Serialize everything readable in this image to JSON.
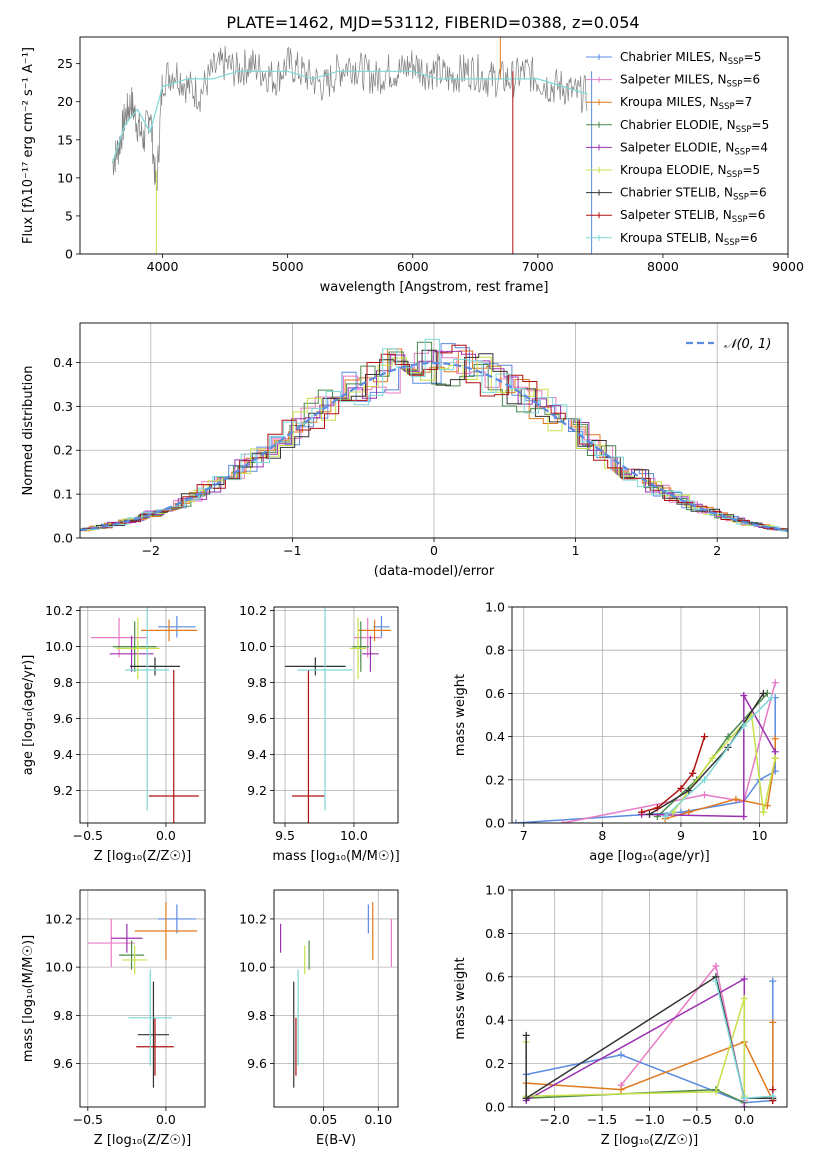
{
  "figure": {
    "title": "PLATE=1462, MJD=53112, FIBERID=0388, z=0.054"
  },
  "models": [
    {
      "name": "Chabrier MILES",
      "nssp": "5",
      "color": "#5b8be0"
    },
    {
      "name": "Salpeter MILES",
      "nssp": "6",
      "color": "#e87bc6"
    },
    {
      "name": "Kroupa MILES",
      "nssp": "7",
      "color": "#e07a1f"
    },
    {
      "name": "Chabrier ELODIE",
      "nssp": "5",
      "color": "#4b8a4b"
    },
    {
      "name": "Salpeter ELODIE",
      "nssp": "4",
      "color": "#9b30b0"
    },
    {
      "name": "Kroupa ELODIE",
      "nssp": "5",
      "color": "#c8e04a"
    },
    {
      "name": "Chabrier STELIB",
      "nssp": "6",
      "color": "#333333"
    },
    {
      "name": "Salpeter STELIB",
      "nssp": "6",
      "color": "#b01010"
    },
    {
      "name": "Kroupa STELIB",
      "nssp": "6",
      "color": "#7fd8d8"
    }
  ],
  "chart_data": [
    {
      "id": "spectrum",
      "type": "line",
      "xlabel": "wavelength [Angstrom, rest frame]",
      "ylabel": "Flux [fλ10⁻¹⁷ erg cm⁻² s⁻¹ A⁻¹]",
      "xlim": [
        3340,
        9000
      ],
      "ylim": [
        0,
        28.5
      ],
      "xticks": [
        4000,
        5000,
        6000,
        7000,
        8000,
        9000
      ],
      "yticks": [
        0,
        5,
        10,
        15,
        20,
        25
      ],
      "legend_position": "top-right",
      "series": [
        {
          "name": "data",
          "color": "#808080",
          "x": [
            3600,
            3650,
            3700,
            3750,
            3800,
            3850,
            3900,
            3950,
            4000,
            4100,
            4200,
            4300,
            4400,
            4500,
            4600,
            4700,
            4800,
            4900,
            5000,
            5100,
            5200,
            5300,
            5400,
            5500,
            5600,
            5700,
            5800,
            5900,
            6000,
            6100,
            6200,
            6300,
            6400,
            6500,
            6600,
            6700,
            6800,
            6900,
            7000,
            7100,
            7200,
            7300,
            7400
          ],
          "y": [
            12,
            14,
            18,
            20,
            17,
            15,
            19,
            8,
            23,
            24,
            22,
            21,
            24,
            25,
            24,
            25,
            24,
            23,
            25,
            24,
            23,
            22,
            24,
            25,
            24,
            23,
            24,
            24,
            25,
            24,
            24,
            23,
            24,
            24,
            23,
            23,
            23,
            24,
            23,
            22,
            22,
            21,
            21
          ]
        },
        {
          "name": "model",
          "color": "#7fd8d8",
          "x": [
            3600,
            3700,
            3800,
            3900,
            4000,
            4200,
            4400,
            4600,
            4800,
            5000,
            5200,
            5400,
            5600,
            5800,
            6000,
            6200,
            6400,
            6600,
            6800,
            7000,
            7200,
            7400
          ],
          "y": [
            12,
            17,
            19,
            16,
            22,
            23,
            23,
            24,
            24,
            24,
            23,
            24,
            24,
            24,
            24,
            23,
            23,
            23,
            23,
            23,
            22,
            21
          ]
        }
      ]
    },
    {
      "id": "residuals",
      "type": "line",
      "xlabel": "(data-model)/error",
      "ylabel": "Normed distribution",
      "xlim": [
        -2.5,
        2.5
      ],
      "ylim": [
        0,
        0.49
      ],
      "xticks": [
        -2,
        -1,
        0,
        1,
        2
      ],
      "yticks": [
        0.0,
        0.1,
        0.2,
        0.3,
        0.4
      ],
      "legend": "𝒩(0, 1)",
      "legend_position": "top-right",
      "curve": {
        "name": "𝒩(0, 1)",
        "mean": 0,
        "sigma": 1,
        "color": "#5b8be0",
        "style": "dashed"
      }
    },
    {
      "id": "age-Z",
      "type": "scatter",
      "xlabel": "Z [log₁₀(Z/Z☉)]",
      "ylabel": "age  [log₁₀(age/yr)]",
      "xlim": [
        -0.55,
        0.25
      ],
      "ylim": [
        9.02,
        10.22
      ],
      "xticks": [
        -0.5,
        0.0
      ],
      "yticks": [
        9.2,
        9.4,
        9.6,
        9.8,
        10.0,
        10.2
      ],
      "points": [
        {
          "x": 0.07,
          "y": 10.11,
          "xerr": 0.12,
          "yerr": 0.06,
          "color": "#5b8be0"
        },
        {
          "x": -0.3,
          "y": 10.05,
          "xerr": 0.18,
          "yerr": 0.11,
          "color": "#e87bc6"
        },
        {
          "x": 0.02,
          "y": 10.09,
          "xerr": 0.18,
          "yerr": 0.06,
          "color": "#e07a1f"
        },
        {
          "x": -0.2,
          "y": 10.0,
          "xerr": 0.14,
          "yerr": 0.14,
          "color": "#4b8a4b"
        },
        {
          "x": -0.22,
          "y": 9.96,
          "xerr": 0.14,
          "yerr": 0.1,
          "color": "#9b30b0"
        },
        {
          "x": -0.18,
          "y": 9.99,
          "xerr": 0.14,
          "yerr": 0.17,
          "color": "#c8e04a"
        },
        {
          "x": -0.07,
          "y": 9.89,
          "xerr": 0.16,
          "yerr": 0.05,
          "color": "#333333"
        },
        {
          "x": 0.05,
          "y": 9.17,
          "xerr": 0.16,
          "yerr": 0.7,
          "color": "#b01010"
        },
        {
          "x": -0.12,
          "y": 9.87,
          "xerr": 0.14,
          "yerr": 0.78,
          "color": "#7fd8d8"
        }
      ]
    },
    {
      "id": "age-mass",
      "type": "scatter",
      "xlabel": "mass [log₁₀(M/M☉)]",
      "ylabel": "",
      "xlim": [
        9.42,
        10.32
      ],
      "ylim": [
        9.02,
        10.22
      ],
      "xticks": [
        9.5,
        10.0
      ],
      "yticks": [
        9.2,
        9.4,
        9.6,
        9.8,
        10.0,
        10.2
      ],
      "points": [
        {
          "x": 10.2,
          "y": 10.11,
          "xerr": 0.06,
          "yerr": 0.06,
          "color": "#5b8be0"
        },
        {
          "x": 10.1,
          "y": 10.05,
          "xerr": 0.1,
          "yerr": 0.11,
          "color": "#e87bc6"
        },
        {
          "x": 10.15,
          "y": 10.09,
          "xerr": 0.12,
          "yerr": 0.06,
          "color": "#e07a1f"
        },
        {
          "x": 10.05,
          "y": 10.0,
          "xerr": 0.06,
          "yerr": 0.14,
          "color": "#4b8a4b"
        },
        {
          "x": 10.12,
          "y": 9.96,
          "xerr": 0.06,
          "yerr": 0.1,
          "color": "#9b30b0"
        },
        {
          "x": 10.03,
          "y": 9.99,
          "xerr": 0.06,
          "yerr": 0.17,
          "color": "#c8e04a"
        },
        {
          "x": 9.72,
          "y": 9.89,
          "xerr": 0.22,
          "yerr": 0.05,
          "color": "#333333"
        },
        {
          "x": 9.67,
          "y": 9.17,
          "xerr": 0.12,
          "yerr": 0.7,
          "color": "#b01010"
        },
        {
          "x": 9.79,
          "y": 9.87,
          "xerr": 0.2,
          "yerr": 0.78,
          "color": "#7fd8d8"
        }
      ]
    },
    {
      "id": "mass-weight-age",
      "type": "line",
      "xlabel": "age  [log₁₀(age/yr)]",
      "ylabel": "mass weight",
      "xlim": [
        6.85,
        10.35
      ],
      "ylim": [
        0,
        1.0
      ],
      "xticks": [
        7,
        8,
        9,
        10
      ],
      "yticks": [
        0.0,
        0.2,
        0.4,
        0.6,
        0.8,
        1.0
      ],
      "series": [
        {
          "name": "Chabrier MILES",
          "color": "#5b8be0",
          "x": [
            6.9,
            9.0,
            9.8,
            10.0,
            10.2,
            10.2
          ],
          "y": [
            0.0,
            0.05,
            0.1,
            0.2,
            0.24,
            0.58
          ]
        },
        {
          "name": "Salpeter MILES",
          "color": "#e87bc6",
          "x": [
            7.5,
            9.3,
            9.8,
            10.2
          ],
          "y": [
            0.0,
            0.13,
            0.1,
            0.65
          ]
        },
        {
          "name": "Kroupa MILES",
          "color": "#e07a1f",
          "x": [
            8.8,
            9.1,
            9.7,
            10.1,
            10.2,
            10.2
          ],
          "y": [
            0.02,
            0.05,
            0.11,
            0.08,
            0.3,
            0.39
          ]
        },
        {
          "name": "Chabrier ELODIE",
          "color": "#4b8a4b",
          "x": [
            8.7,
            9.2,
            9.6,
            10.1
          ],
          "y": [
            0.03,
            0.2,
            0.4,
            0.6
          ]
        },
        {
          "name": "Salpeter ELODIE",
          "color": "#9b30b0",
          "x": [
            8.5,
            9.8,
            9.8,
            10.2
          ],
          "y": [
            0.04,
            0.03,
            0.59,
            0.33
          ]
        },
        {
          "name": "Kroupa ELODIE",
          "color": "#c8e04a",
          "x": [
            8.9,
            9.4,
            9.9,
            10.05,
            10.2
          ],
          "y": [
            0.05,
            0.3,
            0.5,
            0.05,
            0.3
          ]
        },
        {
          "name": "Chabrier STELIB",
          "color": "#333333",
          "x": [
            8.6,
            9.1,
            9.6,
            10.05
          ],
          "y": [
            0.04,
            0.15,
            0.35,
            0.6
          ]
        },
        {
          "name": "Salpeter STELIB",
          "color": "#b01010",
          "x": [
            8.5,
            8.7,
            9.0,
            9.15,
            9.3
          ],
          "y": [
            0.05,
            0.07,
            0.16,
            0.23,
            0.4
          ]
        },
        {
          "name": "Kroupa STELIB",
          "color": "#7fd8d8",
          "x": [
            8.8,
            9.3,
            9.8,
            10.15
          ],
          "y": [
            0.03,
            0.2,
            0.45,
            0.58
          ]
        }
      ]
    },
    {
      "id": "mass-Z",
      "type": "scatter",
      "xlabel": "Z [log₁₀(Z/Z☉)]",
      "ylabel": "mass [log₁₀(M/M☉)]",
      "xlim": [
        -0.55,
        0.25
      ],
      "ylim": [
        9.42,
        10.32
      ],
      "xticks": [
        -0.5,
        0.0
      ],
      "yticks": [
        9.6,
        9.8,
        10.0,
        10.2
      ],
      "points": [
        {
          "x": 0.07,
          "y": 10.2,
          "xerr": 0.12,
          "yerr": 0.06,
          "color": "#5b8be0"
        },
        {
          "x": -0.35,
          "y": 10.1,
          "xerr": 0.15,
          "yerr": 0.1,
          "color": "#e87bc6"
        },
        {
          "x": 0.0,
          "y": 10.15,
          "xerr": 0.2,
          "yerr": 0.12,
          "color": "#e07a1f"
        },
        {
          "x": -0.22,
          "y": 10.05,
          "xerr": 0.08,
          "yerr": 0.06,
          "color": "#4b8a4b"
        },
        {
          "x": -0.25,
          "y": 10.12,
          "xerr": 0.1,
          "yerr": 0.06,
          "color": "#9b30b0"
        },
        {
          "x": -0.2,
          "y": 10.03,
          "xerr": 0.08,
          "yerr": 0.06,
          "color": "#c8e04a"
        },
        {
          "x": -0.08,
          "y": 9.72,
          "xerr": 0.1,
          "yerr": 0.22,
          "color": "#333333"
        },
        {
          "x": -0.07,
          "y": 9.67,
          "xerr": 0.12,
          "yerr": 0.12,
          "color": "#b01010"
        },
        {
          "x": -0.1,
          "y": 9.79,
          "xerr": 0.14,
          "yerr": 0.2,
          "color": "#7fd8d8"
        }
      ]
    },
    {
      "id": "mass-EBV",
      "type": "scatter",
      "xlabel": "E(B-V)",
      "ylabel": "",
      "xlim": [
        0.005,
        0.118
      ],
      "ylim": [
        9.42,
        10.32
      ],
      "xticks": [
        0.05,
        0.1
      ],
      "yticks": [
        9.6,
        9.8,
        10.0,
        10.2
      ],
      "points": [
        {
          "x": 0.091,
          "y": 10.2,
          "yerr": 0.06,
          "color": "#5b8be0"
        },
        {
          "x": 0.112,
          "y": 10.1,
          "yerr": 0.1,
          "color": "#e87bc6"
        },
        {
          "x": 0.095,
          "y": 10.15,
          "yerr": 0.12,
          "color": "#e07a1f"
        },
        {
          "x": 0.037,
          "y": 10.05,
          "yerr": 0.06,
          "color": "#4b8a4b"
        },
        {
          "x": 0.011,
          "y": 10.12,
          "yerr": 0.06,
          "color": "#9b30b0"
        },
        {
          "x": 0.033,
          "y": 10.03,
          "yerr": 0.06,
          "color": "#c8e04a"
        },
        {
          "x": 0.023,
          "y": 9.72,
          "yerr": 0.22,
          "color": "#333333"
        },
        {
          "x": 0.025,
          "y": 9.67,
          "yerr": 0.12,
          "color": "#b01010"
        },
        {
          "x": 0.027,
          "y": 9.79,
          "yerr": 0.2,
          "color": "#7fd8d8"
        }
      ]
    },
    {
      "id": "mass-weight-Z",
      "type": "line",
      "xlabel": "Z [log₁₀(Z/Z☉)]",
      "ylabel": "mass weight",
      "xlim": [
        -2.45,
        0.45
      ],
      "ylim": [
        0,
        1.0
      ],
      "xticks": [
        -2.0,
        -1.5,
        -1.0,
        -0.5,
        0.0
      ],
      "yticks": [
        0.0,
        0.2,
        0.4,
        0.6,
        0.8,
        1.0
      ],
      "series": [
        {
          "name": "Chabrier MILES",
          "color": "#5b8be0",
          "x": [
            -2.3,
            -1.3,
            0.0,
            0.3,
            0.3
          ],
          "y": [
            0.15,
            0.24,
            0.02,
            0.03,
            0.58
          ]
        },
        {
          "name": "Salpeter MILES",
          "color": "#e87bc6",
          "x": [
            -1.3,
            -0.3,
            0.0
          ],
          "y": [
            0.1,
            0.65,
            0.03
          ]
        },
        {
          "name": "Kroupa MILES",
          "color": "#e07a1f",
          "x": [
            -2.3,
            -1.3,
            0.0,
            0.3,
            0.3
          ],
          "y": [
            0.11,
            0.08,
            0.3,
            0.03,
            0.39
          ]
        },
        {
          "name": "Chabrier ELODIE",
          "color": "#4b8a4b",
          "x": [
            -2.3,
            -0.3,
            0.0
          ],
          "y": [
            0.04,
            0.08,
            0.02
          ]
        },
        {
          "name": "Salpeter ELODIE",
          "color": "#9b30b0",
          "x": [
            -2.3,
            0.0,
            0.0
          ],
          "y": [
            0.03,
            0.59,
            0.0
          ]
        },
        {
          "name": "Kroupa ELODIE",
          "color": "#c8e04a",
          "x": [
            -2.3,
            -2.3,
            -0.3,
            0.0,
            0.0
          ],
          "y": [
            0.3,
            0.05,
            0.07,
            0.5,
            0.05
          ]
        },
        {
          "name": "Chabrier STELIB",
          "color": "#333333",
          "x": [
            -2.3,
            -2.3,
            -0.3,
            0.0,
            0.3
          ],
          "y": [
            0.33,
            0.04,
            0.6,
            0.04,
            0.04
          ]
        },
        {
          "name": "Salpeter STELIB",
          "color": "#b01010",
          "x": [
            0.3,
            0.3
          ],
          "y": [
            0.03,
            0.08
          ]
        },
        {
          "name": "Kroupa STELIB",
          "color": "#7fd8d8",
          "x": [
            -0.3,
            0.0,
            0.3
          ],
          "y": [
            0.58,
            0.04,
            0.05
          ]
        }
      ]
    }
  ]
}
